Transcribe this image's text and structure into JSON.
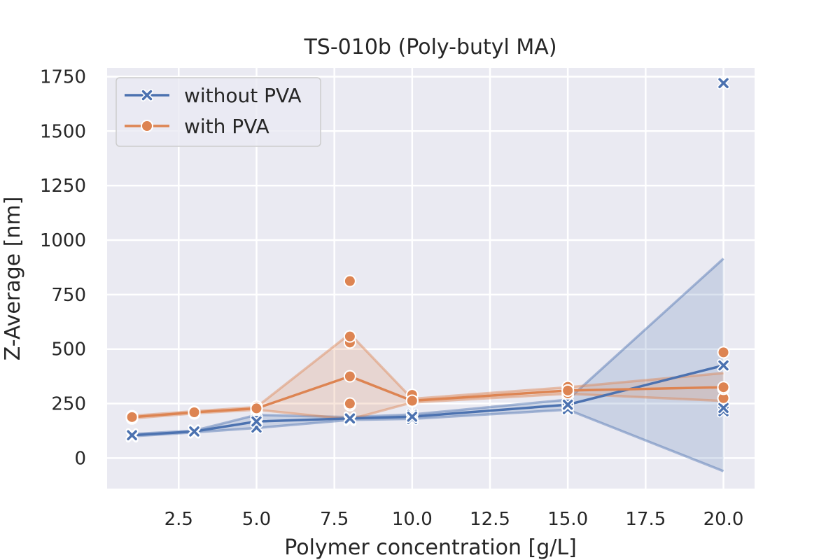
{
  "chart_data": {
    "type": "line",
    "title": "TS-010b (Poly-butyl MA)",
    "xlabel": "Polymer concentration [g/L]",
    "ylabel": "Z-Average [nm]",
    "xlim": [
      0.2,
      21.0
    ],
    "ylim": [
      -140,
      1790
    ],
    "xticks": [
      2.5,
      5.0,
      7.5,
      10.0,
      12.5,
      15.0,
      17.5,
      20.0
    ],
    "xtick_labels": [
      "2.5",
      "5.0",
      "7.5",
      "10.0",
      "12.5",
      "15.0",
      "17.5",
      "20.0"
    ],
    "yticks": [
      0,
      250,
      500,
      750,
      1000,
      1250,
      1500,
      1750
    ],
    "ytick_labels": [
      "0",
      "250",
      "500",
      "750",
      "1000",
      "1250",
      "1500",
      "1750"
    ],
    "grid": true,
    "background": "#eaeaf2",
    "legend_position": "top-left",
    "series": [
      {
        "name": "without PVA",
        "color": "#4c72b0",
        "marker": "x",
        "x": [
          1,
          3,
          5,
          8,
          10,
          15,
          20
        ],
        "mean": [
          105,
          122,
          168,
          182,
          190,
          245,
          425
        ],
        "ci_low": [
          100,
          118,
          138,
          175,
          180,
          222,
          -60
        ],
        "ci_high": [
          110,
          126,
          198,
          188,
          200,
          268,
          915
        ],
        "points": [
          [
            1,
            100
          ],
          [
            1,
            104
          ],
          [
            1,
            108
          ],
          [
            3,
            118
          ],
          [
            3,
            122
          ],
          [
            3,
            126
          ],
          [
            5,
            140
          ],
          [
            5,
            175
          ],
          [
            5,
            195
          ],
          [
            8,
            175
          ],
          [
            8,
            180
          ],
          [
            8,
            185
          ],
          [
            10,
            180
          ],
          [
            10,
            190
          ],
          [
            10,
            198
          ],
          [
            15,
            225
          ],
          [
            15,
            242
          ],
          [
            15,
            265
          ],
          [
            20,
            215
          ],
          [
            20,
            230
          ],
          [
            20,
            425
          ],
          [
            20,
            1720
          ]
        ]
      },
      {
        "name": "with PVA",
        "color": "#dd8452",
        "marker": "o",
        "x": [
          1,
          3,
          5,
          8,
          10,
          15,
          20
        ],
        "mean": [
          188,
          210,
          228,
          375,
          263,
          310,
          325
        ],
        "ci_low": [
          182,
          205,
          222,
          178,
          255,
          295,
          262
        ],
        "ci_high": [
          194,
          215,
          234,
          570,
          272,
          325,
          390
        ],
        "points": [
          [
            1,
            182
          ],
          [
            1,
            188
          ],
          [
            1,
            192
          ],
          [
            3,
            205
          ],
          [
            3,
            210
          ],
          [
            3,
            213
          ],
          [
            5,
            222
          ],
          [
            5,
            228
          ],
          [
            5,
            236
          ],
          [
            8,
            243
          ],
          [
            8,
            250
          ],
          [
            8,
            530
          ],
          [
            8,
            558
          ],
          [
            8,
            812
          ],
          [
            10,
            260
          ],
          [
            10,
            265
          ],
          [
            10,
            290
          ],
          [
            15,
            297
          ],
          [
            15,
            310
          ],
          [
            15,
            327
          ],
          [
            20,
            275
          ],
          [
            20,
            318
          ],
          [
            20,
            485
          ]
        ]
      }
    ]
  }
}
